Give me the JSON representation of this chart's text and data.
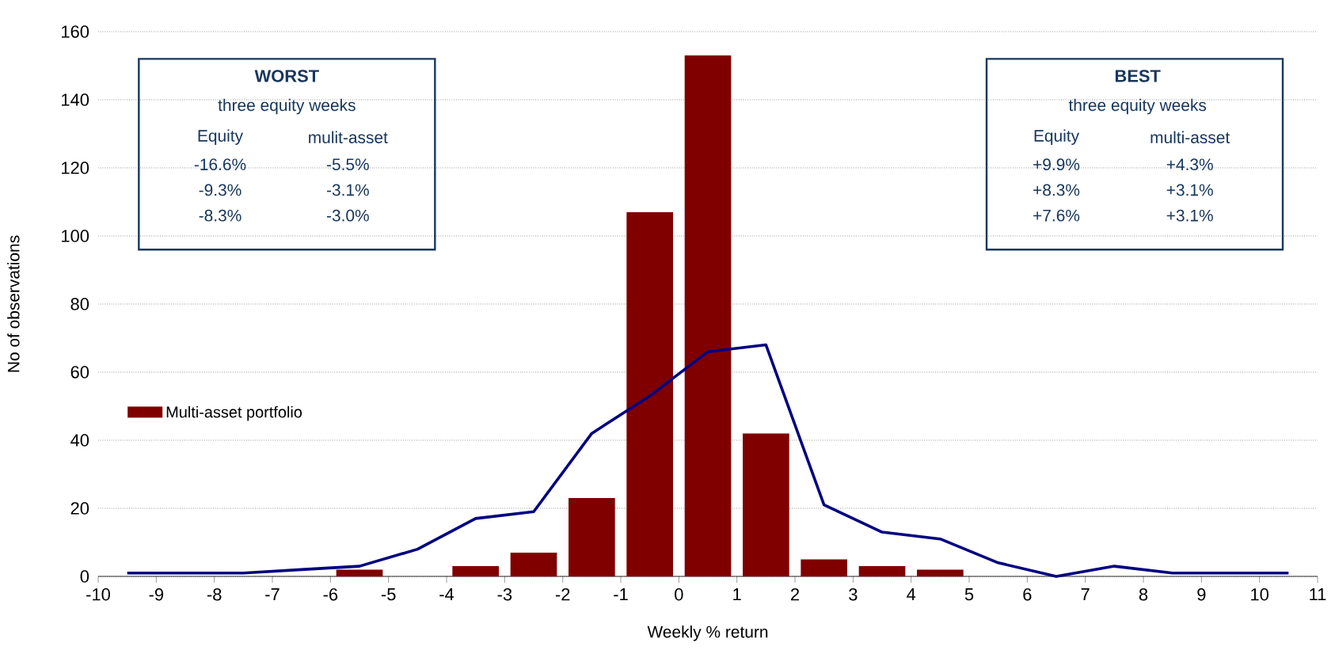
{
  "chart_data": {
    "type": "bar",
    "xlabel": "Weekly % return",
    "ylabel": "No of observations",
    "xlim": [
      -10,
      11
    ],
    "xticks": [
      -10,
      -9,
      -8,
      -7,
      -6,
      -5,
      -4,
      -3,
      -2,
      -1,
      0,
      1,
      2,
      3,
      4,
      5,
      6,
      7,
      8,
      9,
      10,
      11
    ],
    "ylim": [
      0,
      160
    ],
    "yticks": [
      0,
      20,
      40,
      60,
      80,
      100,
      120,
      140,
      160
    ],
    "grid": "y",
    "legend": "left",
    "series": [
      {
        "name": "Multi-asset portfolio",
        "color": "#800000",
        "x": [
          -5.5,
          -3.5,
          -2.5,
          -1.5,
          -0.5,
          0.5,
          1.5,
          2.5,
          3.5,
          4.5
        ],
        "values": [
          2,
          3,
          7,
          23,
          107,
          153,
          42,
          5,
          3,
          2
        ]
      },
      {
        "type": "line",
        "color": "#000080",
        "x": [
          -9.5,
          -8.5,
          -7.5,
          -6.5,
          -5.5,
          -4.5,
          -3.5,
          -2.5,
          -1.5,
          -0.5,
          0.5,
          1.5,
          2.5,
          3.5,
          4.5,
          5.5,
          6.5,
          7.5,
          8.5,
          9.5,
          10.5
        ],
        "values": [
          1,
          1,
          1,
          2,
          3,
          8,
          17,
          19,
          42,
          53,
          66,
          68,
          21,
          13,
          11,
          4,
          0,
          3,
          1,
          1,
          1
        ]
      }
    ],
    "annotations": [
      "WORST",
      "three equity weeks",
      "Equity",
      "mulit-asset",
      "-16.6%",
      "-5.5%",
      "-9.3%",
      "-3.1%",
      "-8.3%",
      "-3.0%",
      "BEST",
      "three equity weeks",
      "Equity",
      "multi-asset",
      "+9.9%",
      "+4.3%",
      "+8.3%",
      "+3.1%",
      "+7.6%",
      "+3.1%"
    ]
  }
}
